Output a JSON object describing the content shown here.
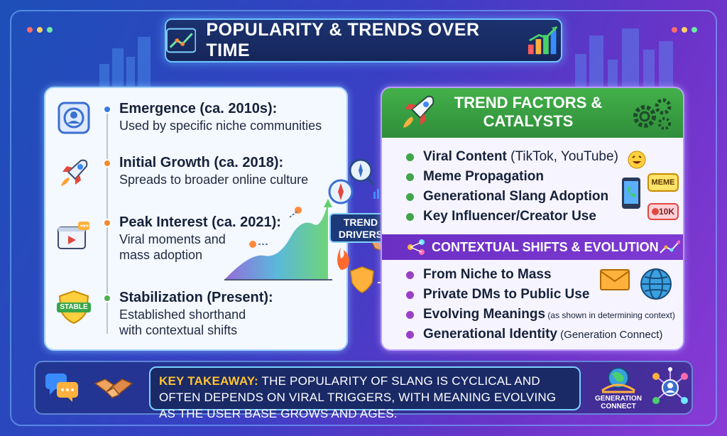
{
  "title": "POPULARITY & TRENDS OVER TIME",
  "timeline": [
    {
      "heading": "Emergence (ca. 2010s):",
      "lines": [
        "Used by specific niche communities"
      ],
      "icon": "user-profile-icon",
      "dot_color": "#3a7be0"
    },
    {
      "heading": "Initial Growth (ca. 2018):",
      "lines": [
        "Spreads to broader online culture"
      ],
      "icon": "rocket-icon",
      "dot_color": "#f08a2e"
    },
    {
      "heading": "Peak Interest (ca. 2021):",
      "lines": [
        "Viral moments and",
        "mass adoption"
      ],
      "icon": "video-player-icon",
      "dot_color": "#f08a2e"
    },
    {
      "heading": "Stabilization (Present):",
      "lines": [
        "Established shorthand",
        "with contextual shifts"
      ],
      "icon": "stable-shield-icon",
      "dot_color": "#4caf50"
    }
  ],
  "stable_badge": "STABLE",
  "trend_drivers": "TREND DRIVERS",
  "factors": {
    "title": "TREND FACTORS & CATALYSTS",
    "items": [
      {
        "bold": "Viral Content",
        "rest": " (TikTok, YouTube)"
      },
      {
        "bold": "Meme Propagation",
        "rest": ""
      },
      {
        "bold": "Generational Slang Adoption",
        "rest": ""
      },
      {
        "bold": "Key Influencer/Creator Use",
        "rest": ""
      }
    ],
    "bullet_color": "#3fa64a",
    "meme_label": "MEME",
    "likes_label": "10K"
  },
  "contextual": {
    "title": "CONTEXTUAL SHIFTS & EVOLUTION",
    "items": [
      {
        "bold": "From Niche to Mass",
        "rest": ""
      },
      {
        "bold": "Private DMs to Public Use",
        "rest": ""
      },
      {
        "bold": "Evolving Meanings",
        "rest": " (as shown in determining context)"
      },
      {
        "bold": "Generational Identity",
        "rest": " (Generation Connect)"
      }
    ],
    "bullet_color": "#9b3fc6"
  },
  "takeaway": {
    "key": "KEY TAKEAWAY:",
    "text": " THE POPULARITY OF SLANG IS CYCLICAL AND OFTEN DEPENDS ON VIRAL TRIGGERS, WITH MEANING EVOLVING AS THE USER BASE GROWS AND AGES."
  },
  "generation_label": "GENERATION CONNECT"
}
